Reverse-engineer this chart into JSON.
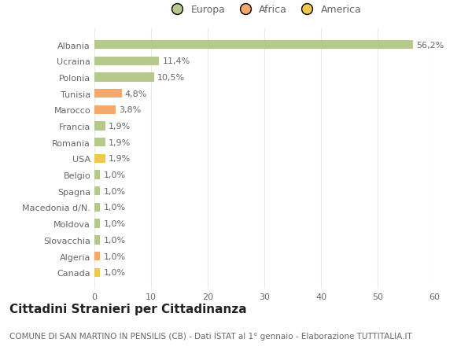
{
  "categories": [
    "Canada",
    "Algeria",
    "Slovacchia",
    "Moldova",
    "Macedonia d/N.",
    "Spagna",
    "Belgio",
    "USA",
    "Romania",
    "Francia",
    "Marocco",
    "Tunisia",
    "Polonia",
    "Ucraina",
    "Albania"
  ],
  "values": [
    1.0,
    1.0,
    1.0,
    1.0,
    1.0,
    1.0,
    1.0,
    1.9,
    1.9,
    1.9,
    3.8,
    4.8,
    10.5,
    11.4,
    56.2
  ],
  "colors": [
    "#f0c84a",
    "#f5a86b",
    "#b5c98a",
    "#b5c98a",
    "#b5c98a",
    "#b5c98a",
    "#b5c98a",
    "#f0c84a",
    "#b5c98a",
    "#b5c98a",
    "#f5a86b",
    "#f5a86b",
    "#b5c98a",
    "#b5c98a",
    "#b5c98a"
  ],
  "labels": [
    "1,0%",
    "1,0%",
    "1,0%",
    "1,0%",
    "1,0%",
    "1,0%",
    "1,0%",
    "1,9%",
    "1,9%",
    "1,9%",
    "3,8%",
    "4,8%",
    "10,5%",
    "11,4%",
    "56,2%"
  ],
  "legend": [
    {
      "label": "Europa",
      "color": "#b5c98a"
    },
    {
      "label": "Africa",
      "color": "#f5a86b"
    },
    {
      "label": "America",
      "color": "#f0c84a"
    }
  ],
  "title": "Cittadini Stranieri per Cittadinanza",
  "subtitle": "COMUNE DI SAN MARTINO IN PENSILIS (CB) - Dati ISTAT al 1° gennaio - Elaborazione TUTTITALIA.IT",
  "xlim": [
    0,
    60
  ],
  "xticks": [
    0,
    10,
    20,
    30,
    40,
    50,
    60
  ],
  "bg_color": "#ffffff",
  "grid_color": "#e8e8e8",
  "bar_height": 0.55,
  "title_fontsize": 11,
  "subtitle_fontsize": 7.5,
  "label_fontsize": 8,
  "tick_fontsize": 8,
  "legend_fontsize": 9
}
